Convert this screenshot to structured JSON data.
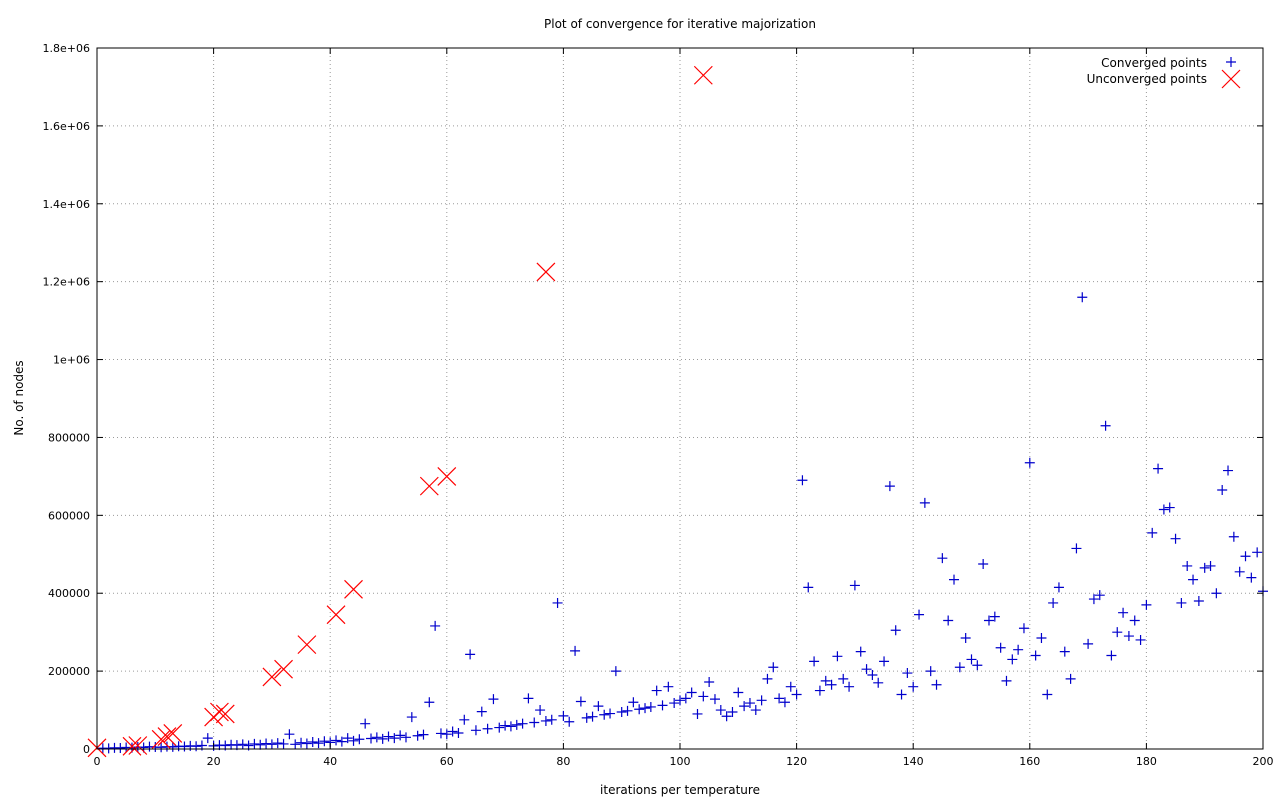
{
  "chart_data": {
    "type": "scatter",
    "title": "Plot of convergence for iterative majorization",
    "xlabel": "iterations per temperature",
    "ylabel": "No. of nodes",
    "xlim": [
      0,
      200
    ],
    "ylim": [
      0,
      1800000
    ],
    "x_ticks": [
      0,
      20,
      40,
      60,
      80,
      100,
      120,
      140,
      160,
      180,
      200
    ],
    "x_tick_labels": [
      "0",
      "20",
      "40",
      "60",
      "80",
      "100",
      "120",
      "140",
      "160",
      "180",
      "200"
    ],
    "y_ticks": [
      0,
      200000,
      400000,
      600000,
      800000,
      1000000,
      1200000,
      1400000,
      1600000,
      1800000
    ],
    "y_tick_labels": [
      "0",
      "200000",
      "400000",
      "600000",
      "800000",
      "1e+06",
      "1.2e+06",
      "1.4e+06",
      "1.6e+06",
      "1.8e+06"
    ],
    "grid": true,
    "legend_position": "top-right",
    "series": [
      {
        "name": "Converged points",
        "marker": "plus",
        "color": "#0000cc",
        "points": [
          [
            1,
            2000
          ],
          [
            2,
            1500
          ],
          [
            3,
            3000
          ],
          [
            4,
            2500
          ],
          [
            5,
            4000
          ],
          [
            6,
            3500
          ],
          [
            7,
            5000
          ],
          [
            8,
            4000
          ],
          [
            9,
            6000
          ],
          [
            10,
            5000
          ],
          [
            11,
            4500
          ],
          [
            12,
            6000
          ],
          [
            13,
            5500
          ],
          [
            14,
            7000
          ],
          [
            15,
            6500
          ],
          [
            16,
            8000
          ],
          [
            17,
            7000
          ],
          [
            18,
            9000
          ],
          [
            19,
            28000
          ],
          [
            20,
            8000
          ],
          [
            21,
            10000
          ],
          [
            22,
            9000
          ],
          [
            23,
            11000
          ],
          [
            24,
            10000
          ],
          [
            25,
            12000
          ],
          [
            26,
            9000
          ],
          [
            27,
            13000
          ],
          [
            28,
            11000
          ],
          [
            29,
            14000
          ],
          [
            30,
            12000
          ],
          [
            31,
            15000
          ],
          [
            32,
            13000
          ],
          [
            33,
            38000
          ],
          [
            34,
            12000
          ],
          [
            35,
            16000
          ],
          [
            36,
            14000
          ],
          [
            37,
            18000
          ],
          [
            38,
            15000
          ],
          [
            39,
            20000
          ],
          [
            40,
            17000
          ],
          [
            41,
            22000
          ],
          [
            42,
            19000
          ],
          [
            43,
            28000
          ],
          [
            44,
            21000
          ],
          [
            45,
            25000
          ],
          [
            46,
            65000
          ],
          [
            47,
            27000
          ],
          [
            48,
            30000
          ],
          [
            49,
            26000
          ],
          [
            50,
            32000
          ],
          [
            51,
            28000
          ],
          [
            52,
            35000
          ],
          [
            53,
            30000
          ],
          [
            54,
            82000
          ],
          [
            55,
            34000
          ],
          [
            56,
            37000
          ],
          [
            57,
            120000
          ],
          [
            58,
            316000
          ],
          [
            59,
            40000
          ],
          [
            60,
            38000
          ],
          [
            61,
            45000
          ],
          [
            62,
            41000
          ],
          [
            63,
            75000
          ],
          [
            64,
            243000
          ],
          [
            65,
            48000
          ],
          [
            66,
            96000
          ],
          [
            67,
            52000
          ],
          [
            68,
            128000
          ],
          [
            69,
            55000
          ],
          [
            70,
            60000
          ],
          [
            71,
            58000
          ],
          [
            72,
            62000
          ],
          [
            73,
            65000
          ],
          [
            74,
            130000
          ],
          [
            75,
            68000
          ],
          [
            76,
            100000
          ],
          [
            77,
            72000
          ],
          [
            78,
            75000
          ],
          [
            79,
            375000
          ],
          [
            80,
            85000
          ],
          [
            81,
            70000
          ],
          [
            82,
            252000
          ],
          [
            83,
            122000
          ],
          [
            84,
            80000
          ],
          [
            85,
            83000
          ],
          [
            86,
            110000
          ],
          [
            87,
            88000
          ],
          [
            88,
            91000
          ],
          [
            89,
            200000
          ],
          [
            90,
            95000
          ],
          [
            91,
            98000
          ],
          [
            92,
            120000
          ],
          [
            93,
            102000
          ],
          [
            94,
            105000
          ],
          [
            95,
            108000
          ],
          [
            96,
            150000
          ],
          [
            97,
            112000
          ],
          [
            98,
            160000
          ],
          [
            99,
            118000
          ],
          [
            100,
            125000
          ],
          [
            101,
            130000
          ],
          [
            102,
            145000
          ],
          [
            103,
            90000
          ],
          [
            104,
            135000
          ],
          [
            105,
            172000
          ],
          [
            106,
            128000
          ],
          [
            107,
            100000
          ],
          [
            108,
            84000
          ],
          [
            109,
            95000
          ],
          [
            110,
            145000
          ],
          [
            111,
            110000
          ],
          [
            112,
            118000
          ],
          [
            113,
            100000
          ],
          [
            114,
            125000
          ],
          [
            115,
            180000
          ],
          [
            116,
            210000
          ],
          [
            117,
            130000
          ],
          [
            118,
            120000
          ],
          [
            119,
            160000
          ],
          [
            120,
            140000
          ],
          [
            121,
            690000
          ],
          [
            122,
            415000
          ],
          [
            123,
            225000
          ],
          [
            124,
            150000
          ],
          [
            125,
            175000
          ],
          [
            126,
            165000
          ],
          [
            127,
            238000
          ],
          [
            128,
            180000
          ],
          [
            129,
            160000
          ],
          [
            130,
            420000
          ],
          [
            131,
            250000
          ],
          [
            132,
            205000
          ],
          [
            133,
            190000
          ],
          [
            134,
            170000
          ],
          [
            135,
            225000
          ],
          [
            136,
            675000
          ],
          [
            137,
            305000
          ],
          [
            138,
            140000
          ],
          [
            139,
            195000
          ],
          [
            140,
            160000
          ],
          [
            141,
            345000
          ],
          [
            142,
            632000
          ],
          [
            143,
            200000
          ],
          [
            144,
            165000
          ],
          [
            145,
            490000
          ],
          [
            146,
            330000
          ],
          [
            147,
            435000
          ],
          [
            148,
            210000
          ],
          [
            149,
            285000
          ],
          [
            150,
            230000
          ],
          [
            151,
            215000
          ],
          [
            152,
            475000
          ],
          [
            153,
            330000
          ],
          [
            154,
            340000
          ],
          [
            155,
            260000
          ],
          [
            156,
            175000
          ],
          [
            157,
            230000
          ],
          [
            158,
            255000
          ],
          [
            159,
            310000
          ],
          [
            160,
            735000
          ],
          [
            161,
            240000
          ],
          [
            162,
            285000
          ],
          [
            163,
            140000
          ],
          [
            164,
            375000
          ],
          [
            165,
            415000
          ],
          [
            166,
            250000
          ],
          [
            167,
            180000
          ],
          [
            168,
            515000
          ],
          [
            169,
            1160000
          ],
          [
            170,
            270000
          ],
          [
            171,
            385000
          ],
          [
            172,
            395000
          ],
          [
            173,
            830000
          ],
          [
            174,
            240000
          ],
          [
            175,
            300000
          ],
          [
            176,
            350000
          ],
          [
            177,
            290000
          ],
          [
            178,
            330000
          ],
          [
            179,
            280000
          ],
          [
            180,
            370000
          ],
          [
            181,
            555000
          ],
          [
            182,
            720000
          ],
          [
            183,
            615000
          ],
          [
            184,
            620000
          ],
          [
            185,
            540000
          ],
          [
            186,
            375000
          ],
          [
            187,
            470000
          ],
          [
            188,
            435000
          ],
          [
            189,
            380000
          ],
          [
            190,
            465000
          ],
          [
            191,
            470000
          ],
          [
            192,
            400000
          ],
          [
            193,
            665000
          ],
          [
            194,
            715000
          ],
          [
            195,
            545000
          ],
          [
            196,
            455000
          ],
          [
            197,
            495000
          ],
          [
            198,
            440000
          ],
          [
            199,
            505000
          ],
          [
            200,
            405000
          ]
        ]
      },
      {
        "name": "Unconverged points",
        "marker": "cross",
        "color": "#ff0000",
        "points": [
          [
            0,
            3000
          ],
          [
            6,
            7000
          ],
          [
            7,
            9000
          ],
          [
            11,
            25000
          ],
          [
            12,
            32000
          ],
          [
            13,
            40000
          ],
          [
            20,
            82000
          ],
          [
            21,
            95000
          ],
          [
            22,
            90000
          ],
          [
            30,
            185000
          ],
          [
            32,
            205000
          ],
          [
            36,
            268000
          ],
          [
            41,
            345000
          ],
          [
            44,
            410000
          ],
          [
            57,
            675000
          ],
          [
            60,
            700000
          ],
          [
            77,
            1225000
          ],
          [
            104,
            1730000
          ]
        ]
      }
    ]
  }
}
